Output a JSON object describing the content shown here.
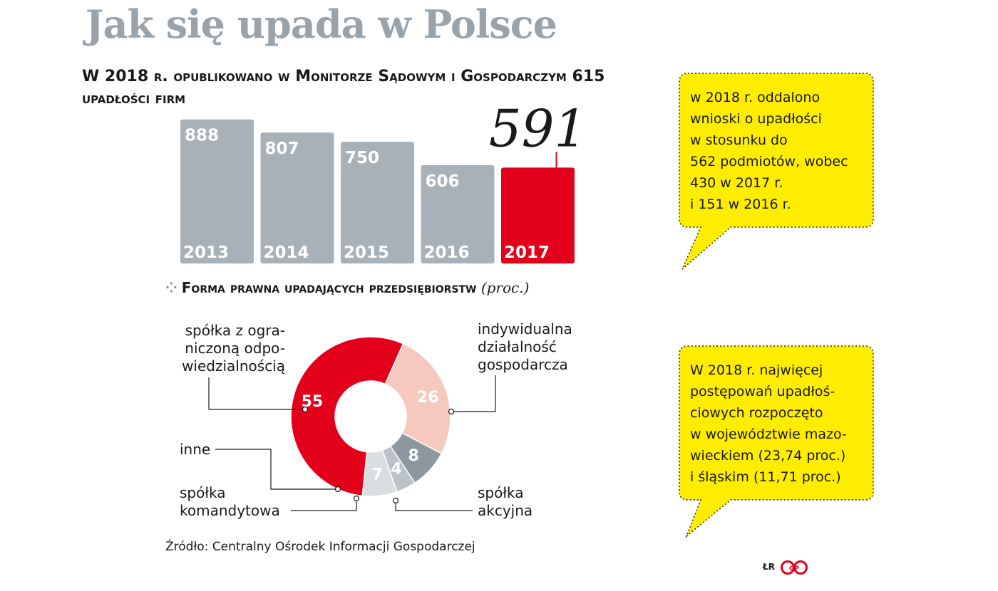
{
  "title": "Jak się upada w Polsce",
  "subtitle": "W 2018 r. opublikowano w Monitorze Sądowym i Gospodarczym 615 upadłości firm",
  "chart_data": [
    {
      "type": "bar",
      "categories": [
        "2013",
        "2014",
        "2015",
        "2016",
        "2017"
      ],
      "values": [
        888,
        807,
        750,
        606,
        591
      ],
      "value_labels": [
        "888",
        "807",
        "750",
        "606",
        ""
      ],
      "highlight_index": 4,
      "highlight_label": "591",
      "colors": {
        "default": "#a8b1b8",
        "highlight": "#e2001a"
      },
      "ylim": [
        0,
        900
      ]
    },
    {
      "type": "pie",
      "title": "Forma prawna upadających przedsiębiorstw",
      "unit": "(proc.)",
      "slices": [
        {
          "label": "spółka z ograniczoną odpowiedzialnością",
          "value": 55,
          "color": "#e2001a"
        },
        {
          "label": "indywidualna działalność gospodarcza",
          "value": 26,
          "color": "#f5c9bd"
        },
        {
          "label": "spółka akcyjna",
          "value": 8,
          "color": "#8d979e"
        },
        {
          "label": "spółka komandytowa",
          "value": 4,
          "color": "#bcc3c8"
        },
        {
          "label": "inne",
          "value": 7,
          "color": "#d9dee1"
        }
      ],
      "labels_display": {
        "sp_zoo": "spółka z ogra-\nniczoną odpo-\nwiedzialnością",
        "indywidualna": "indywidualna\ndziałalność\ngospodarcza",
        "inne": "inne",
        "komandytowa": "spółka\nkomandytowa",
        "akcyjna": "spółka\nakcyjna"
      }
    }
  ],
  "bubbles": {
    "top": "w 2018 r. oddalono\nwnioski o upadłości\nw stosunku do\n562 podmiotów, wobec\n430 w 2017 r.\ni 151 w 2016 r.",
    "bottom": "W 2018 r. najwięcej\npostępowań upadłoś-\nciowych rozpoczęto\nw województwie mazo-\nwieckiem (23,74 proc.)\ni śląskim (11,71 proc.)",
    "color": "#ffed00"
  },
  "source": "Źródło: Centralny Ośrodek Informacji Gospodarczej",
  "credit": "ŁR",
  "logo_letters": "GP",
  "logo_color": "#e2001a"
}
